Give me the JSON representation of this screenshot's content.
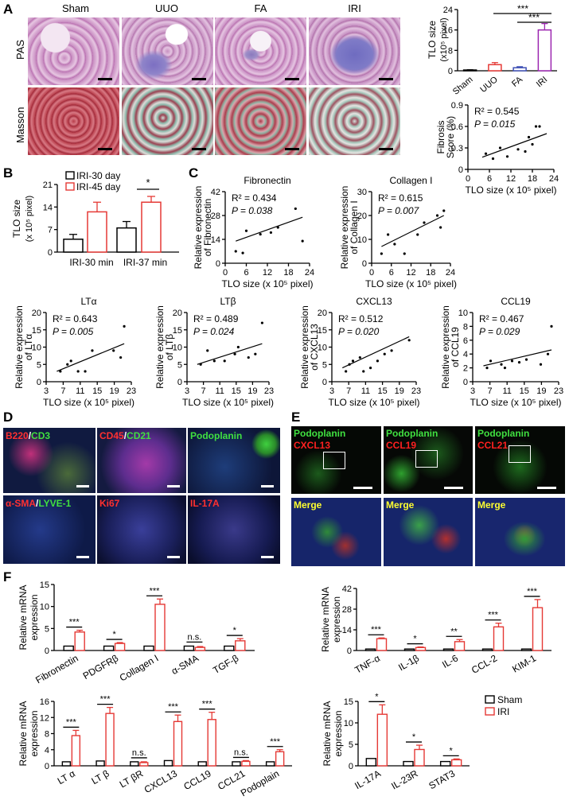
{
  "panels": {
    "A": "A",
    "B": "B",
    "C": "C",
    "D": "D",
    "E": "E",
    "F": "F"
  },
  "panelA": {
    "columns": [
      "Sham",
      "UUO",
      "FA",
      "IRI"
    ],
    "rows": [
      "PAS",
      "Masson"
    ]
  },
  "colors": {
    "sham": "#000000",
    "uuo": "#e53935",
    "fa": "#3f51b5",
    "iri": "#9c27b0",
    "iri_red": "#e53935",
    "line": "#000000"
  },
  "panelD": {
    "labels": [
      {
        "a": "B220",
        "sep": "/",
        "b": "CD3"
      },
      {
        "a": "CD45",
        "sep": "/",
        "b": "CD21"
      },
      {
        "a": "",
        "sep": "",
        "b": "Podoplanin"
      },
      {
        "a": "α-SMA",
        "sep": "/",
        "b": "LYVE-1"
      },
      {
        "a": "Ki67",
        "sep": "",
        "b": ""
      },
      {
        "a": "IL-17A",
        "sep": "",
        "b": ""
      }
    ]
  },
  "panelE": {
    "top": [
      {
        "g": "Podoplanin",
        "r": "CXCL13"
      },
      {
        "g": "Podoplanin",
        "r": "CCL19"
      },
      {
        "g": "Podoplanin",
        "r": "CCL21"
      }
    ],
    "merge": "Merge"
  },
  "chart_data": [
    {
      "id": "A-bar",
      "type": "bar",
      "categories": [
        "Sham",
        "UUO",
        "FA",
        "IRI"
      ],
      "values": [
        0.3,
        2.4,
        1.2,
        16
      ],
      "errors": [
        0.1,
        0.8,
        0.4,
        2.5
      ],
      "colors": [
        "#000000",
        "#e53935",
        "#3f51b5",
        "#9c27b0"
      ],
      "ylabel": "TLO size",
      "ylabel2": "(x10⁵ pixel)",
      "ylim": [
        0,
        24
      ],
      "yticks": [
        "0",
        "8",
        "16",
        "24"
      ],
      "sig": [
        "***",
        "***"
      ]
    },
    {
      "id": "A-scatter",
      "type": "scatter",
      "ylabel": "Fibrosis",
      "ylabel2": "Score (%)",
      "xlabel": "TLO size (x 10⁵ pixel)",
      "xlim": [
        0,
        24
      ],
      "ylim": [
        0,
        0.9
      ],
      "xticks": [
        "0",
        "6",
        "12",
        "18",
        "24"
      ],
      "yticks": [
        "0",
        "0.3",
        "0.6",
        "0.9"
      ],
      "r2": "R² = 0.545",
      "p": "P = 0.015",
      "x": [
        5,
        7,
        9,
        11,
        14,
        16,
        17,
        18,
        19,
        20
      ],
      "y": [
        0.22,
        0.15,
        0.3,
        0.18,
        0.28,
        0.25,
        0.45,
        0.35,
        0.6,
        0.6
      ],
      "fit": [
        [
          4,
          0.17
        ],
        [
          22,
          0.5
        ]
      ]
    },
    {
      "id": "B",
      "type": "bar",
      "categories": [
        "IRI-30 min",
        "IRI-37 min"
      ],
      "series": [
        {
          "name": "IRI-30 day",
          "values": [
            4,
            7.5
          ],
          "errors": [
            1.5,
            2
          ]
        },
        {
          "name": "IRI-45 day",
          "values": [
            12.5,
            15.5
          ],
          "errors": [
            3,
            1.8
          ]
        }
      ],
      "ylabel": "TLO size",
      "ylabel2": "(x 10⁵ pixel)",
      "ylim": [
        0,
        21
      ],
      "yticks": [
        "0",
        "7",
        "14",
        "21"
      ],
      "sig": "*"
    },
    {
      "id": "C1",
      "type": "scatter",
      "title": "Fibronectin",
      "ylabel": "Relative expression",
      "ylabel2": "of Fibronectin",
      "xlabel": "TLO size (x 10⁵ pixel)",
      "xlim": [
        0,
        24
      ],
      "ylim": [
        0,
        42
      ],
      "xticks": [
        "0",
        "6",
        "12",
        "18",
        "24"
      ],
      "yticks": [
        "0",
        "14",
        "28",
        "42"
      ],
      "r2": "R² = 0.434",
      "p": "P = 0.038",
      "x": [
        3,
        5,
        6,
        10,
        13,
        15,
        20,
        22
      ],
      "y": [
        7,
        6,
        19,
        17,
        18,
        21,
        32,
        13
      ],
      "fit": [
        [
          3,
          13
        ],
        [
          22,
          27
        ]
      ]
    },
    {
      "id": "C2",
      "type": "scatter",
      "title": "Collagen I",
      "ylabel": "Relative expression",
      "ylabel2": "of Collagen I",
      "xlabel": "TLO size (x 10⁵ pixel)",
      "xlim": [
        0,
        24
      ],
      "ylim": [
        0,
        30
      ],
      "xticks": [
        "0",
        "6",
        "12",
        "18",
        "24"
      ],
      "yticks": [
        "0",
        "10",
        "20",
        "30"
      ],
      "r2": "R² = 0.615",
      "p": "P = 0.007",
      "x": [
        3,
        5,
        7,
        10,
        14,
        16,
        20,
        21,
        22
      ],
      "y": [
        4,
        12,
        8,
        4,
        12,
        17,
        20,
        15,
        22
      ],
      "fit": [
        [
          3,
          7
        ],
        [
          22,
          20
        ]
      ]
    },
    {
      "id": "C3",
      "type": "scatter",
      "title": "LTα",
      "ylabel": "Relative expression",
      "ylabel2": "of LTα",
      "xlabel": "TLO size (x 10⁵ pixel)",
      "xlim": [
        0,
        24
      ],
      "ylim": [
        0,
        20
      ],
      "xticks": [
        "3",
        "7",
        "11",
        "15",
        "19",
        "23"
      ],
      "yticks": [
        "0",
        "5",
        "10",
        "15",
        "20"
      ],
      "r2": "R² = 0.643",
      "p": "P = 0.005",
      "x": [
        4,
        6,
        7,
        9,
        11,
        13,
        19,
        21,
        22
      ],
      "y": [
        3,
        5,
        6,
        3,
        3,
        9,
        9,
        7,
        16
      ],
      "fit": [
        [
          3,
          3
        ],
        [
          22,
          11
        ]
      ]
    },
    {
      "id": "C4",
      "type": "scatter",
      "title": "LTβ",
      "ylabel": "Relative expression",
      "ylabel2": "of LTβ",
      "xlabel": "TLO size (x 10⁵ pixel)",
      "xlim": [
        0,
        24
      ],
      "ylim": [
        0,
        20
      ],
      "xticks": [
        "3",
        "7",
        "11",
        "15",
        "19",
        "23"
      ],
      "yticks": [
        "0",
        "5",
        "10",
        "15",
        "20"
      ],
      "r2": "R² = 0.489",
      "p": "P = 0.024",
      "x": [
        4,
        6,
        8,
        11,
        14,
        15,
        18,
        20,
        22
      ],
      "y": [
        5,
        9,
        6,
        6,
        8,
        10,
        7,
        8,
        17
      ],
      "fit": [
        [
          3,
          5
        ],
        [
          22,
          11
        ]
      ]
    },
    {
      "id": "C5",
      "type": "scatter",
      "title": "CXCL13",
      "ylabel": "Relative expression",
      "ylabel2": "of CXCL13",
      "xlabel": "TLO size (x 10⁵ pixel)",
      "xlim": [
        0,
        24
      ],
      "ylim": [
        0,
        20
      ],
      "xticks": [
        "3",
        "7",
        "11",
        "15",
        "19",
        "23"
      ],
      "yticks": [
        "0",
        "5",
        "10",
        "15",
        "20"
      ],
      "r2": "R² = 0.512",
      "p": "P = 0.020",
      "x": [
        4,
        5,
        6,
        8,
        9,
        11,
        13,
        15,
        17,
        22
      ],
      "y": [
        3,
        5,
        6,
        7,
        3,
        4,
        6,
        8,
        9,
        12
      ],
      "fit": [
        [
          3,
          4
        ],
        [
          22,
          13
        ]
      ]
    },
    {
      "id": "C6",
      "type": "scatter",
      "title": "CCL19",
      "ylabel": "Relative expression",
      "ylabel2": "of CCL19",
      "xlabel": "TLO size (x 10⁵ pixel)",
      "xlim": [
        0,
        24
      ],
      "ylim": [
        0,
        10
      ],
      "xticks": [
        "3",
        "7",
        "11",
        "15",
        "19",
        "23"
      ],
      "yticks": [
        "0",
        "2",
        "4",
        "6",
        "8",
        "10"
      ],
      "r2": "R² = 0.467",
      "p": "P = 0.029",
      "x": [
        4,
        5,
        8,
        9,
        11,
        13,
        15,
        19,
        21,
        22
      ],
      "y": [
        2,
        3,
        2.5,
        2,
        3,
        2.8,
        3.2,
        2.5,
        4,
        8
      ],
      "fit": [
        [
          3,
          2.3
        ],
        [
          22,
          4.6
        ]
      ]
    },
    {
      "id": "F1",
      "type": "bar",
      "categories": [
        "Fibronectin",
        "PDGFRβ",
        "Collagen I",
        "α-SMA",
        "TGF-β"
      ],
      "series": [
        {
          "name": "Sham",
          "values": [
            1,
            1,
            1,
            1,
            1
          ]
        },
        {
          "name": "IRI",
          "values": [
            4.2,
            1.6,
            10.5,
            0.7,
            2.2
          ]
        }
      ],
      "errors": [
        0.4,
        0.2,
        1.2,
        0.2,
        0.5
      ],
      "sig": [
        "***",
        "*",
        "***",
        "n.s.",
        "*"
      ],
      "ylabel": "Relative mRNA",
      "ylabel2": "expression",
      "ylim": [
        0,
        15
      ],
      "yticks": [
        "0",
        "5",
        "10",
        "15"
      ]
    },
    {
      "id": "F2",
      "type": "bar",
      "categories": [
        "TNF-α",
        "IL-1β",
        "IL-6",
        "CCL-2",
        "KIM-1"
      ],
      "series": [
        {
          "name": "Sham",
          "values": [
            1,
            1,
            1,
            1,
            1
          ]
        },
        {
          "name": "IRI",
          "values": [
            8,
            2,
            6,
            16,
            29
          ]
        }
      ],
      "errors": [
        0.5,
        0.4,
        1.4,
        2.5,
        5.5
      ],
      "sig": [
        "***",
        "*",
        "**",
        "***",
        "***"
      ],
      "ylabel": "Relative mRNA",
      "ylabel2": "expression",
      "ylim": [
        0,
        42
      ],
      "yticks": [
        "0",
        "14",
        "28",
        "42"
      ]
    },
    {
      "id": "F3",
      "type": "bar",
      "categories": [
        "LT α",
        "LT β",
        "LT βR",
        "CXCL13",
        "CCL19",
        "CCL21",
        "Podoplain"
      ],
      "series": [
        {
          "name": "Sham",
          "values": [
            1,
            1.2,
            1,
            1.3,
            1,
            1,
            1
          ]
        },
        {
          "name": "IRI",
          "values": [
            7.5,
            13,
            0.8,
            11,
            11.5,
            1.1,
            3.5
          ]
        }
      ],
      "errors": [
        1.3,
        1.5,
        0.2,
        1.6,
        1.8,
        0.2,
        0.5
      ],
      "sig": [
        "***",
        "***",
        "n.s.",
        "***",
        "***",
        "n.s.",
        "***"
      ],
      "ylabel": "Relative mRNA",
      "ylabel2": "expression",
      "ylim": [
        0,
        16
      ],
      "yticks": [
        "0",
        "4",
        "8",
        "12",
        "16"
      ]
    },
    {
      "id": "F4",
      "type": "bar",
      "categories": [
        "IL-17A",
        "IL-23R",
        "STAT3"
      ],
      "series": [
        {
          "name": "Sham",
          "values": [
            1.7,
            1,
            1
          ]
        },
        {
          "name": "IRI",
          "values": [
            12,
            3.8,
            1.4
          ]
        }
      ],
      "errors": [
        2.2,
        1,
        0.2
      ],
      "sig": [
        "*",
        "*",
        "*"
      ],
      "ylabel": "Relative mRNA",
      "ylabel2": "expression",
      "ylim": [
        0,
        15
      ],
      "yticks": [
        "0",
        "5",
        "10",
        "15"
      ],
      "legend": [
        "Sham",
        "IRI"
      ]
    }
  ]
}
